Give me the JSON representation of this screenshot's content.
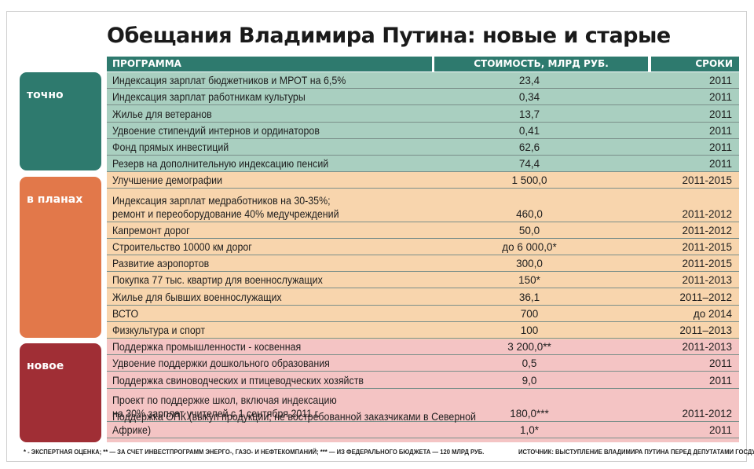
{
  "title": "Обещания Владимира Путина: новые и старые",
  "columns": {
    "program": "ПРОГРАММА",
    "cost": "СТОИМОСТЬ, МЛРД РУБ.",
    "term": "СРОКИ"
  },
  "categories": {
    "exact": "точно",
    "plans": "в планах",
    "new": "новое"
  },
  "colors": {
    "header": "#2e7a6e",
    "exact": "#2e7a6e",
    "exact_band": "#a9cfc0",
    "plans": "#e2784a",
    "plans_band": "#f8d5ad",
    "new": "#a02e35",
    "new_band": "#f4c4c4"
  },
  "rows": [
    {
      "program": "Индексация зарплат бюджетников и МРОТ на 6,5%",
      "cost": "23,4",
      "term": "2011"
    },
    {
      "program": "Индексация зарплат работникам культуры",
      "cost": "0,34",
      "term": "2011"
    },
    {
      "program": "Жилье для ветеранов",
      "cost": "13,7",
      "term": "2011"
    },
    {
      "program": "Удвоение стипендий интернов и ординаторов",
      "cost": "0,41",
      "term": "2011"
    },
    {
      "program": "Фонд прямых инвестиций",
      "cost": "62,6",
      "term": "2011"
    },
    {
      "program": "Резерв на дополнительную индексацию пенсий",
      "cost": "74,4",
      "term": "2011"
    },
    {
      "program": "Улучшение демографии",
      "cost": "1 500,0",
      "term": "2011-2015"
    },
    {
      "program": "Индексация зарплат медработников на 30-35%;\nремонт и переоборудование 40% медучреждений",
      "cost": "460,0",
      "term": "2011-2012"
    },
    {
      "program": "Капремонт дорог",
      "cost": "50,0",
      "term": "2011-2012"
    },
    {
      "program": "Строительство 10000 км дорог",
      "cost": "до 6 000,0*",
      "term": "2011-2015"
    },
    {
      "program": "Развитие аэропортов",
      "cost": "300,0",
      "term": "2011-2015"
    },
    {
      "program": "Покупка 77 тыс. квартир для военнослужащих",
      "cost": "150*",
      "term": "2011-2013"
    },
    {
      "program": "Жилье для бывших военнослужащих",
      "cost": "36,1",
      "term": "2011–2012"
    },
    {
      "program": "ВСТО",
      "cost": "700",
      "term": "до 2014"
    },
    {
      "program": "Физкультура и спорт",
      "cost": "100",
      "term": "2011–2013"
    },
    {
      "program": "Поддержка промышленности - косвенная",
      "cost": "3 200,0**",
      "term": "2011-2013"
    },
    {
      "program": "Удвоение поддержки дошкольного образования",
      "cost": "0,5",
      "term": "2011"
    },
    {
      "program": "Поддержка свиноводческих и птицеводческих хозяйств",
      "cost": "9,0",
      "term": "2011"
    },
    {
      "program": "Проект по поддержке школ, включая индексацию\nна 30% зарплат учителей с 1 сентября 2011 г.",
      "cost": "180,0***",
      "term": "2011-2012"
    },
    {
      "program": "Поддержка ОПК (выкуп продукции, не востребованной заказчиками в Северной Африке)",
      "cost": "1,0*",
      "term": "2011"
    }
  ],
  "footnote": "* - ЭКСПЕРТНАЯ ОЦЕНКА; ** — ЗА СЧЕТ ИНВЕСТПРОГРАММ ЭНЕРГО-, ГАЗО- И НЕФТЕКОМПАНИЙ; *** — ИЗ ФЕДЕРАЛЬНОГО БЮДЖЕТА — 120 МЛРД РУБ.",
  "source": "ИСТОЧНИК: ВЫСТУПЛЕНИЕ ВЛАДИМИРА ПУТИНА ПЕРЕД ДЕПУТАТАМИ ГОСДУМЫ"
}
